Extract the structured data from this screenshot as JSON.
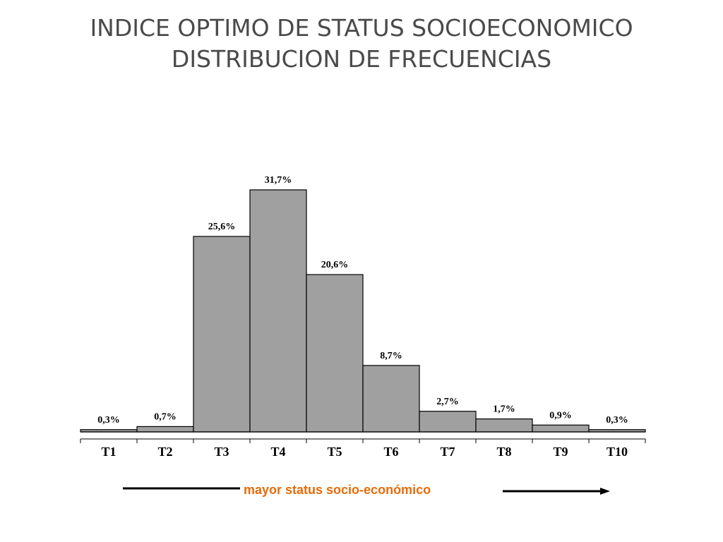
{
  "slide": {
    "title_line1": "INDICE OPTIMO DE STATUS SOCIOECONOMICO",
    "title_line2": "DISTRIBUCION DE FRECUENCIAS",
    "caption": "mayor status socio-económico"
  },
  "chart_data": {
    "type": "bar",
    "categories": [
      "T1",
      "T2",
      "T3",
      "T4",
      "T5",
      "T6",
      "T7",
      "T8",
      "T9",
      "T10"
    ],
    "values": [
      0.3,
      0.7,
      25.6,
      31.7,
      20.6,
      8.7,
      2.7,
      1.7,
      0.9,
      0.3
    ],
    "data_labels": [
      "0,3%",
      "0,7%",
      "25,6%",
      "31,7%",
      "20,6%",
      "8,7%",
      "2,7%",
      "1,7%",
      "0,9%",
      "0,3%"
    ],
    "unit": "%",
    "title": "",
    "xlabel": "",
    "ylabel": "",
    "ylim": [
      0,
      31.7
    ],
    "grid": false,
    "legend": "none",
    "bar_color": "#a0a0a0",
    "edge_color": "#000000"
  },
  "colors": {
    "title": "#4a4a4a",
    "caption": "#e46c0a",
    "arrow": "#000000"
  }
}
